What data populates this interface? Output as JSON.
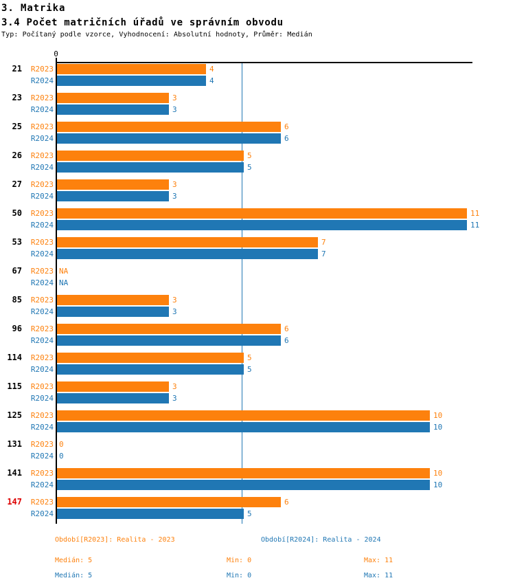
{
  "header": {
    "title": "3. Matrika",
    "subtitle": "3.4 Počet matričních úřadů ve správním obvodu",
    "meta": "Typ: Počítaný podle vzorce, Vyhodnocení: Absolutní hodnoty, Průměr: Medián"
  },
  "colors": {
    "r2023": "#fd810d",
    "r2024": "#2077b4",
    "highlight": "#dd0000",
    "axis": "#000000"
  },
  "chart_data": {
    "type": "bar",
    "orientation": "horizontal",
    "title": "3.4 Počet matričních úřadů ve správním obvodu",
    "categories": [
      "21",
      "23",
      "25",
      "26",
      "27",
      "50",
      "53",
      "67",
      "85",
      "96",
      "114",
      "115",
      "125",
      "131",
      "141",
      "147"
    ],
    "highlighted_category": "147",
    "series": [
      {
        "name": "R2023",
        "color": "#fd810d",
        "values": [
          4,
          3,
          6,
          5,
          3,
          11,
          7,
          null,
          3,
          6,
          5,
          3,
          10,
          0,
          10,
          6
        ]
      },
      {
        "name": "R2024",
        "color": "#2077b4",
        "values": [
          4,
          3,
          6,
          5,
          3,
          11,
          7,
          null,
          3,
          6,
          5,
          3,
          10,
          0,
          10,
          5
        ]
      }
    ],
    "na_text": "NA",
    "axis": {
      "tick_label": "0",
      "xmin": 0,
      "xmax": 11,
      "grid": false
    },
    "median_line": {
      "value": 5,
      "color": "#2077b4"
    },
    "legend_position": "bottom"
  },
  "footer": {
    "legend": [
      {
        "label": "Období[R2023]: Realita - 2023",
        "color": "#fd810d"
      },
      {
        "label": "Období[R2024]: Realita - 2024",
        "color": "#2077b4"
      }
    ],
    "stats": [
      {
        "median": "Medián: 5",
        "min": "Min: 0",
        "max": "Max: 11",
        "color": "#fd810d"
      },
      {
        "median": "Medián: 5",
        "min": "Min: 0",
        "max": "Max: 11",
        "color": "#2077b4"
      }
    ]
  }
}
